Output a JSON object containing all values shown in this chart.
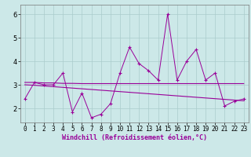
{
  "x": [
    0,
    1,
    2,
    3,
    4,
    5,
    6,
    7,
    8,
    9,
    10,
    11,
    12,
    13,
    14,
    15,
    16,
    17,
    18,
    19,
    20,
    21,
    22,
    23
  ],
  "line1_y": [
    2.4,
    3.1,
    3.0,
    3.0,
    3.5,
    1.85,
    2.65,
    1.6,
    1.75,
    2.2,
    3.5,
    4.6,
    3.9,
    3.6,
    3.2,
    6.0,
    3.2,
    4.0,
    4.5,
    3.2,
    3.5,
    2.1,
    2.3,
    2.4
  ],
  "line2_y": [
    3.1,
    3.1,
    3.08,
    3.08,
    3.06,
    3.06,
    3.05,
    3.05,
    3.05,
    3.05,
    3.05,
    3.05,
    3.05,
    3.05,
    3.05,
    3.05,
    3.05,
    3.05,
    3.05,
    3.05,
    3.05,
    3.05,
    3.05,
    3.05
  ],
  "line3_y": [
    3.0,
    2.98,
    2.95,
    2.92,
    2.89,
    2.86,
    2.83,
    2.8,
    2.77,
    2.74,
    2.71,
    2.68,
    2.65,
    2.62,
    2.59,
    2.56,
    2.53,
    2.5,
    2.47,
    2.44,
    2.41,
    2.38,
    2.35,
    2.32
  ],
  "line_color": "#990099",
  "bg_color": "#cce8e8",
  "grid_color": "#aacccc",
  "xlabel": "Windchill (Refroidissement éolien,°C)",
  "ylim": [
    1.4,
    6.4
  ],
  "xlim": [
    -0.5,
    23.5
  ],
  "yticks": [
    2,
    3,
    4,
    5,
    6
  ],
  "xticks": [
    0,
    1,
    2,
    3,
    4,
    5,
    6,
    7,
    8,
    9,
    10,
    11,
    12,
    13,
    14,
    15,
    16,
    17,
    18,
    19,
    20,
    21,
    22,
    23
  ],
  "xlabel_fontsize": 6,
  "tick_fontsize": 5.5
}
